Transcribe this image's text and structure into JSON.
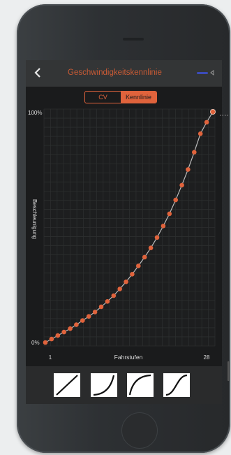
{
  "nav": {
    "title": "Geschwindigkeitskennlinie",
    "back_icon": "chevron-left-icon"
  },
  "segmented": {
    "cv_label": "CV",
    "kennlinie_label": "Kennlinie",
    "selected": "Kennlinie"
  },
  "colors": {
    "accent": "#e0633c",
    "title": "#c95b35",
    "grid": "#2c2e2f",
    "curve_line": "#bcbcbc",
    "status": "#3b4bb8"
  },
  "chart_data": {
    "type": "line",
    "ylabel": "Beschleunigung",
    "xlabel": "Fahrstufen",
    "ytick_top": "100%",
    "ytick_bottom": "0%",
    "xtick_left": "1",
    "xtick_right": "28",
    "xlim": [
      1,
      28
    ],
    "ylim": [
      0,
      100
    ],
    "grid": true,
    "x": [
      1,
      2,
      3,
      4,
      5,
      6,
      7,
      8,
      9,
      10,
      11,
      12,
      13,
      14,
      15,
      16,
      17,
      18,
      19,
      20,
      21,
      22,
      23,
      24,
      25,
      26,
      27,
      28
    ],
    "values": [
      0.0,
      1.5,
      3.0,
      4.5,
      6.0,
      7.7,
      9.5,
      11.3,
      13.2,
      15.5,
      17.8,
      20.3,
      23.2,
      26.3,
      29.6,
      33.2,
      37.0,
      41.0,
      45.5,
      50.5,
      55.8,
      61.8,
      68.2,
      75.0,
      82.5,
      90.5,
      95.5,
      100.0
    ]
  },
  "presets": [
    {
      "name": "linear-curve-icon"
    },
    {
      "name": "exponential-curve-icon"
    },
    {
      "name": "logarithmic-curve-icon"
    },
    {
      "name": "s-curve-icon"
    }
  ]
}
